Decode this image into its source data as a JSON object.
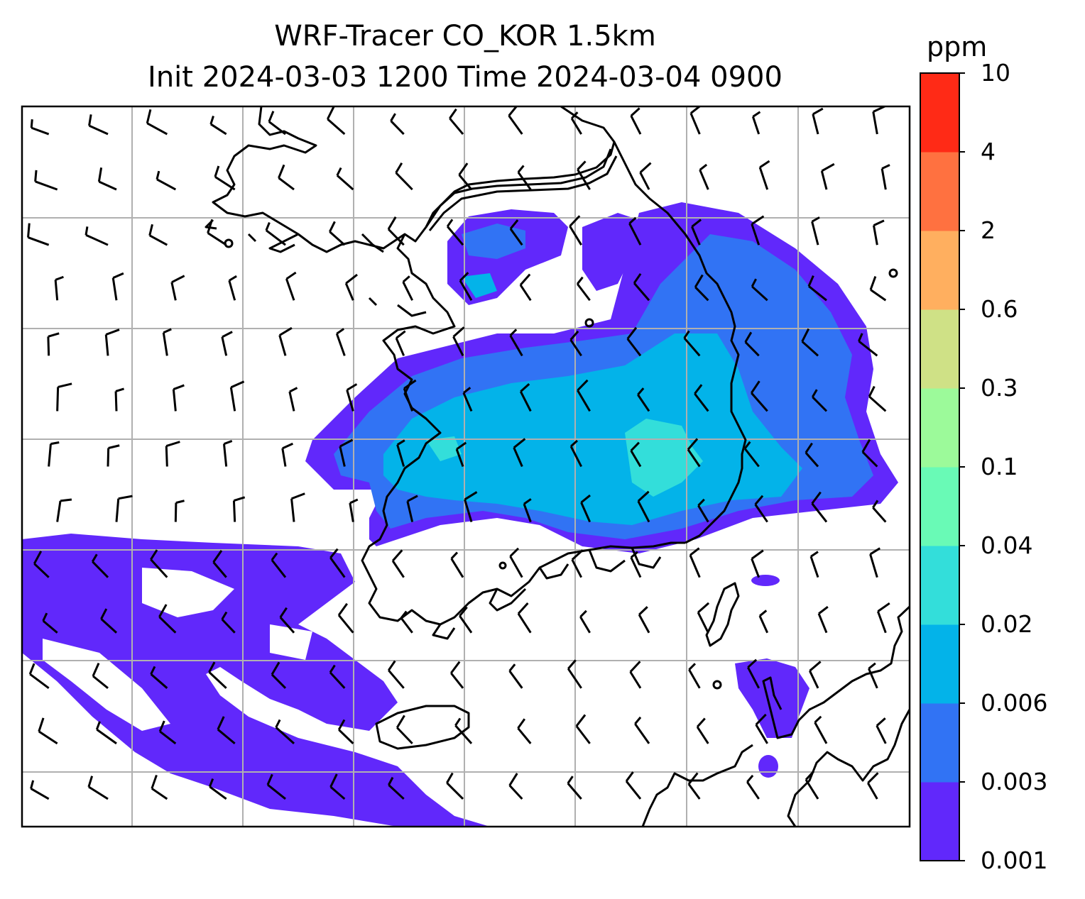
{
  "title": {
    "line1": "WRF-Tracer CO_KOR 1.5km",
    "line2": "Init 2024-03-03 1200 Time 2024-03-04 0900"
  },
  "colorbar": {
    "unit": "ppm",
    "ticks": [
      "0.001",
      "0.003",
      "0.006",
      "0.02",
      "0.04",
      "0.1",
      "0.3",
      "0.6",
      "2",
      "4",
      "10"
    ],
    "colors": [
      "#6128fb",
      "#3173f4",
      "#03b3e9",
      "#33deda",
      "#69fab6",
      "#9cfa9a",
      "#cfe186",
      "#ffaf5f",
      "#ff7140",
      "#ff2a16"
    ]
  },
  "map": {
    "frame_color": "#000000",
    "grid_color": "#b0b0b0",
    "coastline_color": "#000000",
    "wind_barb_color": "#000000"
  }
}
